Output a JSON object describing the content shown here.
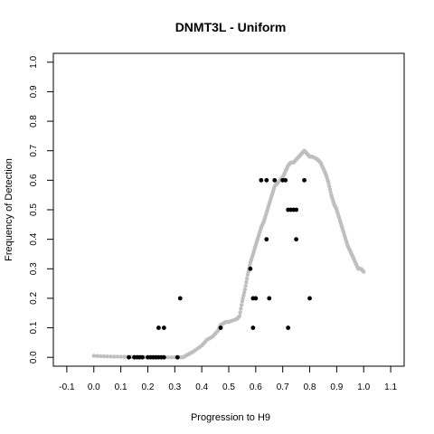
{
  "chart_data": {
    "type": "scatter",
    "title": "DNMT3L - Uniform",
    "xlabel": "Progression to H9",
    "ylabel": "Frequency of Detection",
    "xlim": [
      -0.15,
      1.15
    ],
    "ylim": [
      -0.03,
      1.03
    ],
    "x_ticks": [
      "-0.1",
      "0.0",
      "0.1",
      "0.2",
      "0.3",
      "0.4",
      "0.5",
      "0.6",
      "0.7",
      "0.8",
      "0.9",
      "1.0",
      "1.1"
    ],
    "y_ticks": [
      "0.0",
      "0.1",
      "0.2",
      "0.3",
      "0.4",
      "0.5",
      "0.6",
      "0.7",
      "0.8",
      "0.9",
      "1.0"
    ],
    "grid": false,
    "colors": {
      "smooth": "#bfbfbf",
      "points": "#000000"
    },
    "series": [
      {
        "style": "smooth-curve",
        "x": [
          0.0,
          0.05,
          0.1,
          0.15,
          0.2,
          0.25,
          0.3,
          0.33,
          0.35,
          0.37,
          0.4,
          0.42,
          0.44,
          0.46,
          0.47,
          0.49,
          0.5,
          0.53,
          0.54,
          0.55,
          0.56,
          0.57,
          0.58,
          0.59,
          0.6,
          0.61,
          0.62,
          0.63,
          0.64,
          0.65,
          0.66,
          0.67,
          0.68,
          0.69,
          0.7,
          0.71,
          0.72,
          0.73,
          0.74,
          0.75,
          0.76,
          0.77,
          0.78,
          0.79,
          0.8,
          0.81,
          0.82,
          0.83,
          0.84,
          0.85,
          0.86,
          0.87,
          0.88,
          0.89,
          0.9,
          0.91,
          0.92,
          0.93,
          0.94,
          0.95,
          0.96,
          0.97,
          0.98,
          0.99,
          1.0
        ],
        "y": [
          0.005,
          0.003,
          0.002,
          0.002,
          0.0,
          0.0,
          0.0,
          0.0,
          0.01,
          0.02,
          0.04,
          0.06,
          0.07,
          0.09,
          0.11,
          0.12,
          0.12,
          0.13,
          0.14,
          0.19,
          0.23,
          0.28,
          0.32,
          0.35,
          0.38,
          0.41,
          0.44,
          0.46,
          0.49,
          0.52,
          0.55,
          0.58,
          0.59,
          0.6,
          0.61,
          0.63,
          0.65,
          0.66,
          0.66,
          0.67,
          0.68,
          0.69,
          0.7,
          0.69,
          0.68,
          0.68,
          0.675,
          0.67,
          0.66,
          0.64,
          0.62,
          0.59,
          0.55,
          0.52,
          0.5,
          0.47,
          0.44,
          0.41,
          0.38,
          0.36,
          0.34,
          0.32,
          0.3,
          0.3,
          0.29
        ]
      },
      {
        "style": "points",
        "x": [
          0.13,
          0.15,
          0.16,
          0.17,
          0.18,
          0.2,
          0.21,
          0.22,
          0.23,
          0.24,
          0.25,
          0.26,
          0.31,
          0.24,
          0.26,
          0.32,
          0.47,
          0.58,
          0.59,
          0.6,
          0.59,
          0.65,
          0.62,
          0.64,
          0.67,
          0.7,
          0.71,
          0.72,
          0.73,
          0.75,
          0.74,
          0.75,
          0.72,
          0.78,
          0.8,
          0.64
        ],
        "y": [
          0.0,
          0.0,
          0.0,
          0.0,
          0.0,
          0.0,
          0.0,
          0.0,
          0.0,
          0.0,
          0.0,
          0.0,
          0.0,
          0.1,
          0.1,
          0.2,
          0.1,
          0.3,
          0.2,
          0.2,
          0.1,
          0.2,
          0.6,
          0.6,
          0.6,
          0.6,
          0.6,
          0.5,
          0.5,
          0.5,
          0.5,
          0.4,
          0.1,
          0.6,
          0.2,
          0.4
        ]
      }
    ]
  }
}
